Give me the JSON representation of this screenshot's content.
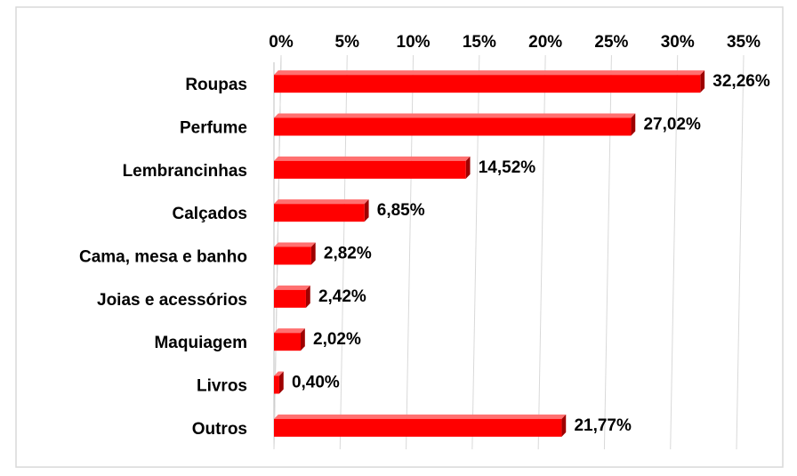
{
  "chart_data": {
    "type": "bar",
    "orientation": "horizontal",
    "categories": [
      "Roupas",
      "Perfume",
      "Lembrancinhas",
      "Calçados",
      "Cama, mesa e banho",
      "Joias e acessórios",
      "Maquiagem",
      "Livros",
      "Outros"
    ],
    "values": [
      32.26,
      27.02,
      14.52,
      6.85,
      2.82,
      2.42,
      2.02,
      0.4,
      21.77
    ],
    "value_labels": [
      "32,26%",
      "27,02%",
      "14,52%",
      "6,85%",
      "2,82%",
      "2,42%",
      "2,02%",
      "0,40%",
      "21,77%"
    ],
    "color": "#ff0000",
    "xlim": [
      0,
      35
    ],
    "xticks": [
      {
        "value": 0,
        "label": "0%"
      },
      {
        "value": 5,
        "label": "5%"
      },
      {
        "value": 10,
        "label": "10%"
      },
      {
        "value": 15,
        "label": "15%"
      },
      {
        "value": 20,
        "label": "20%"
      },
      {
        "value": 25,
        "label": "25%"
      },
      {
        "value": 30,
        "label": "30%"
      },
      {
        "value": 35,
        "label": "35%"
      }
    ],
    "grid": true
  }
}
